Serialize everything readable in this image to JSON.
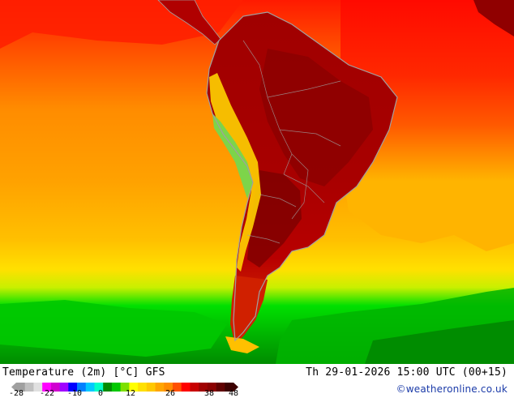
{
  "map": {
    "title": "Temperature (2m) [°C] GFS",
    "run_label": "Th 29-01-2026 15:00 UTC (00+15)",
    "credit": "©weatheronline.co.uk",
    "palette": {
      "ocean_warm": "#ff8c00",
      "ocean_mid": "#ffa500",
      "ocean_cool": "#ffc800",
      "land_hot": "#8b0000",
      "land_warm": "#c80000",
      "tropics": "#ff2a00",
      "southern_ocean_green": "#00c800",
      "southern_ocean_dark": "#008c00",
      "coastline": "#a0a0a0",
      "andes_cool": "#7dd44a"
    }
  },
  "legend": {
    "ticks": [
      "-28",
      "-22",
      "-10",
      "0",
      "12",
      "26",
      "38",
      "48"
    ],
    "colors": [
      "#a0a0a0",
      "#c0c0c0",
      "#e0e0e0",
      "#ff00ff",
      "#d000d0",
      "#a000ff",
      "#0000ff",
      "#0080ff",
      "#00c8ff",
      "#00ffc8",
      "#008c00",
      "#00c800",
      "#7de000",
      "#ffff00",
      "#ffe000",
      "#ffc800",
      "#ffa500",
      "#ff8c00",
      "#ff5000",
      "#ff0000",
      "#c80000",
      "#a00000",
      "#8b0000",
      "#600000",
      "#3c0000"
    ]
  }
}
